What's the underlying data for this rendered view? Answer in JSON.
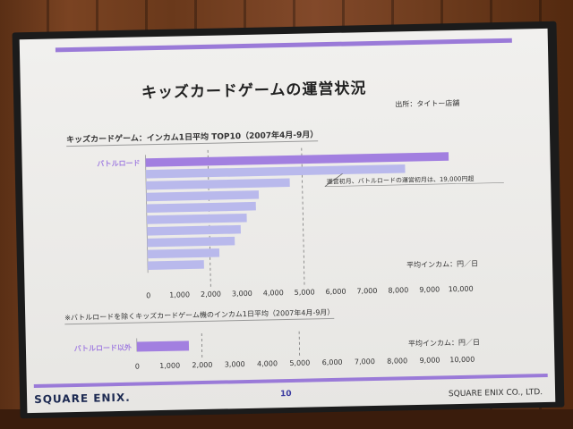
{
  "slide": {
    "title": "キッズカードゲームの運営状況",
    "source": "出所：タイトー店舗",
    "page_number": "10",
    "logo_text": "SQUARE ENIX.",
    "copyright": "SQUARE ENIX CO., LTD."
  },
  "colors": {
    "highlight": "#a27fe0",
    "bar": "#b9b9ec",
    "band": "#9a7ad8"
  },
  "chart_data": [
    {
      "type": "bar",
      "orientation": "horizontal",
      "title": "キッズカードゲーム：インカム1日平均 TOP10（2007年4月-9月）",
      "categories": [
        "バトルロード",
        "",
        "",
        "",
        "",
        "",
        "",
        "",
        "",
        ""
      ],
      "values": [
        9700,
        8300,
        4600,
        3600,
        3500,
        3200,
        3000,
        2800,
        2300,
        1800
      ],
      "unit_label": "平均インカム：円／日",
      "xlim": [
        0,
        10000
      ],
      "xticks": [
        "0",
        "1,000",
        "2,000",
        "3,000",
        "4,000",
        "5,000",
        "6,000",
        "7,000",
        "8,000",
        "9,000",
        "10,000"
      ],
      "reference_lines": [
        2000,
        5000
      ],
      "annotation": "運営初月、バトルロードの運営初月は、19,000円超"
    },
    {
      "type": "bar",
      "orientation": "horizontal",
      "title": "※バトルロードを除くキッズカードゲーム機のインカム1日平均（2007年4月-9月）",
      "categories": [
        "バトルロード以外"
      ],
      "values": [
        1600
      ],
      "unit_label": "平均インカム：円／日",
      "xlim": [
        0,
        10000
      ],
      "xticks": [
        "0",
        "1,000",
        "2,000",
        "3,000",
        "4,000",
        "5,000",
        "6,000",
        "7,000",
        "8,000",
        "9,000",
        "10,000"
      ],
      "reference_lines": [
        2000,
        5000
      ]
    }
  ]
}
